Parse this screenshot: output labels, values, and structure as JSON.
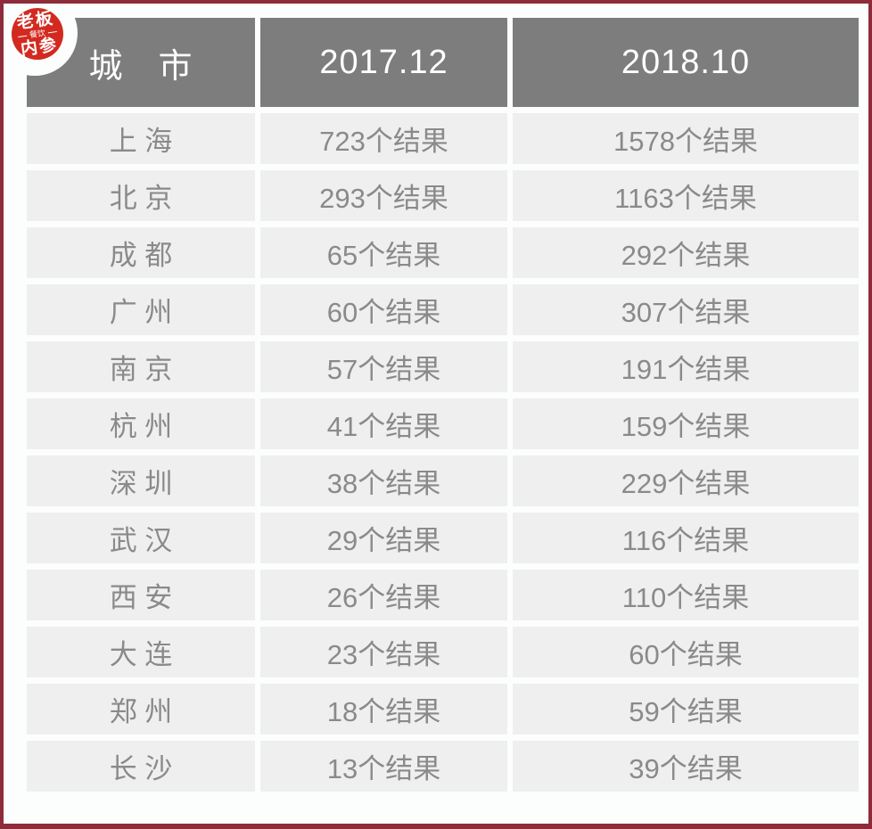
{
  "page": {
    "background": "#fcfdfd",
    "frame_color": "#8e2c3a"
  },
  "logo": {
    "name": "餐饮老板内参",
    "line1": "老板",
    "line2": "餐饮",
    "line3": "内参",
    "seal_color": "#d32a20"
  },
  "table": {
    "header": {
      "city": "城　市",
      "col2017": "2017.12",
      "col2018": "2018.10",
      "bg_color": "#7d7d7d",
      "text_color": "#ffffff"
    },
    "row_bg_color": "#efeff0",
    "row_text_color": "#8a8a8a",
    "rows": [
      {
        "city": "上 海",
        "v2017": "723个结果",
        "v2018": "1578个结果"
      },
      {
        "city": "北 京",
        "v2017": "293个结果",
        "v2018": "1163个结果"
      },
      {
        "city": "成 都",
        "v2017": "65个结果",
        "v2018": "292个结果"
      },
      {
        "city": "广 州",
        "v2017": "60个结果",
        "v2018": "307个结果"
      },
      {
        "city": "南 京",
        "v2017": "57个结果",
        "v2018": "191个结果"
      },
      {
        "city": "杭 州",
        "v2017": "41个结果",
        "v2018": "159个结果"
      },
      {
        "city": "深 圳",
        "v2017": "38个结果",
        "v2018": "229个结果"
      },
      {
        "city": "武 汉",
        "v2017": "29个结果",
        "v2018": "116个结果"
      },
      {
        "city": "西 安",
        "v2017": "26个结果",
        "v2018": "110个结果"
      },
      {
        "city": "大 连",
        "v2017": "23个结果",
        "v2018": "60个结果"
      },
      {
        "city": "郑 州",
        "v2017": "18个结果",
        "v2018": "59个结果"
      },
      {
        "city": "长 沙",
        "v2017": "13个结果",
        "v2018": "39个结果"
      }
    ]
  },
  "chart_data": {
    "type": "table",
    "title": "",
    "columns": [
      "城市",
      "2017.12",
      "2018.10"
    ],
    "categories": [
      "上海",
      "北京",
      "成都",
      "广州",
      "南京",
      "杭州",
      "深圳",
      "武汉",
      "西安",
      "大连",
      "郑州",
      "长沙"
    ],
    "series": [
      {
        "name": "2017.12",
        "values": [
          723,
          293,
          65,
          60,
          57,
          41,
          38,
          29,
          26,
          23,
          18,
          13
        ]
      },
      {
        "name": "2018.10",
        "values": [
          1578,
          1163,
          292,
          307,
          191,
          159,
          229,
          116,
          110,
          60,
          59,
          39
        ]
      }
    ],
    "value_unit": "个结果",
    "legend_position": "none",
    "grid": false
  }
}
